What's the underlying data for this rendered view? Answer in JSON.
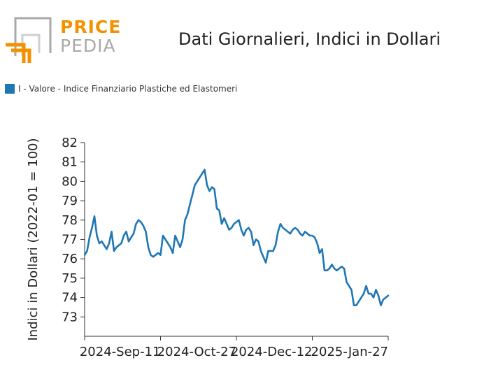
{
  "logo": {
    "top_word": "PRICE",
    "bottom_word": "PEDIA",
    "accent": "#f39200",
    "gray": "#a9a9a9"
  },
  "title": "Dati Giornalieri, Indici in Dollari",
  "legend": {
    "label": "I - Valore - Indice Finanziario Plastiche ed Elastomeri",
    "color": "#1f77b4"
  },
  "chart_data": {
    "type": "line",
    "title": "Dati Giornalieri, Indici in Dollari",
    "ylabel": "Indici in Dollari (2022-01 = 100)",
    "xlabel": "",
    "ylim": [
      72,
      82
    ],
    "yticks": [
      73,
      74,
      75,
      76,
      77,
      78,
      79,
      80,
      81,
      82
    ],
    "xtick_labels": [
      "2024-Sep-11",
      "2024-Oct-27",
      "2024-Dec-12",
      "2025-Jan-27"
    ],
    "grid": false,
    "legend_position": "top-left",
    "series": [
      {
        "name": "I - Valore - Indice Finanziario Plastiche ed Elastomeri",
        "color": "#1f77b4",
        "values": [
          76.2,
          76.4,
          77.1,
          77.6,
          78.2,
          77.2,
          76.8,
          76.9,
          76.7,
          76.5,
          76.8,
          77.4,
          76.4,
          76.6,
          76.7,
          76.8,
          77.2,
          77.4,
          76.9,
          77.1,
          77.3,
          77.8,
          78.0,
          77.9,
          77.7,
          77.4,
          76.6,
          76.2,
          76.1,
          76.2,
          76.3,
          76.2,
          77.2,
          77.0,
          76.8,
          76.6,
          76.3,
          77.2,
          76.9,
          76.6,
          77.0,
          78.0,
          78.3,
          78.8,
          79.3,
          79.8,
          80.0,
          80.2,
          80.4,
          80.6,
          79.8,
          79.5,
          79.7,
          79.6,
          78.6,
          78.5,
          77.8,
          78.1,
          77.8,
          77.5,
          77.6,
          77.8,
          77.9,
          78.0,
          77.5,
          77.2,
          77.5,
          77.6,
          77.4,
          76.7,
          77.0,
          76.9,
          76.4,
          76.1,
          75.8,
          76.4,
          76.4,
          76.4,
          76.7,
          77.4,
          77.8,
          77.6,
          77.5,
          77.4,
          77.3,
          77.5,
          77.6,
          77.5,
          77.3,
          77.2,
          77.4,
          77.3,
          77.2,
          77.2,
          77.1,
          76.8,
          76.3,
          76.5,
          75.4,
          75.4,
          75.5,
          75.7,
          75.5,
          75.4,
          75.5,
          75.6,
          75.5,
          74.8,
          74.6,
          74.4,
          73.6,
          73.6,
          73.8,
          74.0,
          74.2,
          74.6,
          74.2,
          74.2,
          74.0,
          74.4,
          74.1,
          73.6,
          73.9,
          74.0,
          74.1
        ]
      }
    ]
  }
}
